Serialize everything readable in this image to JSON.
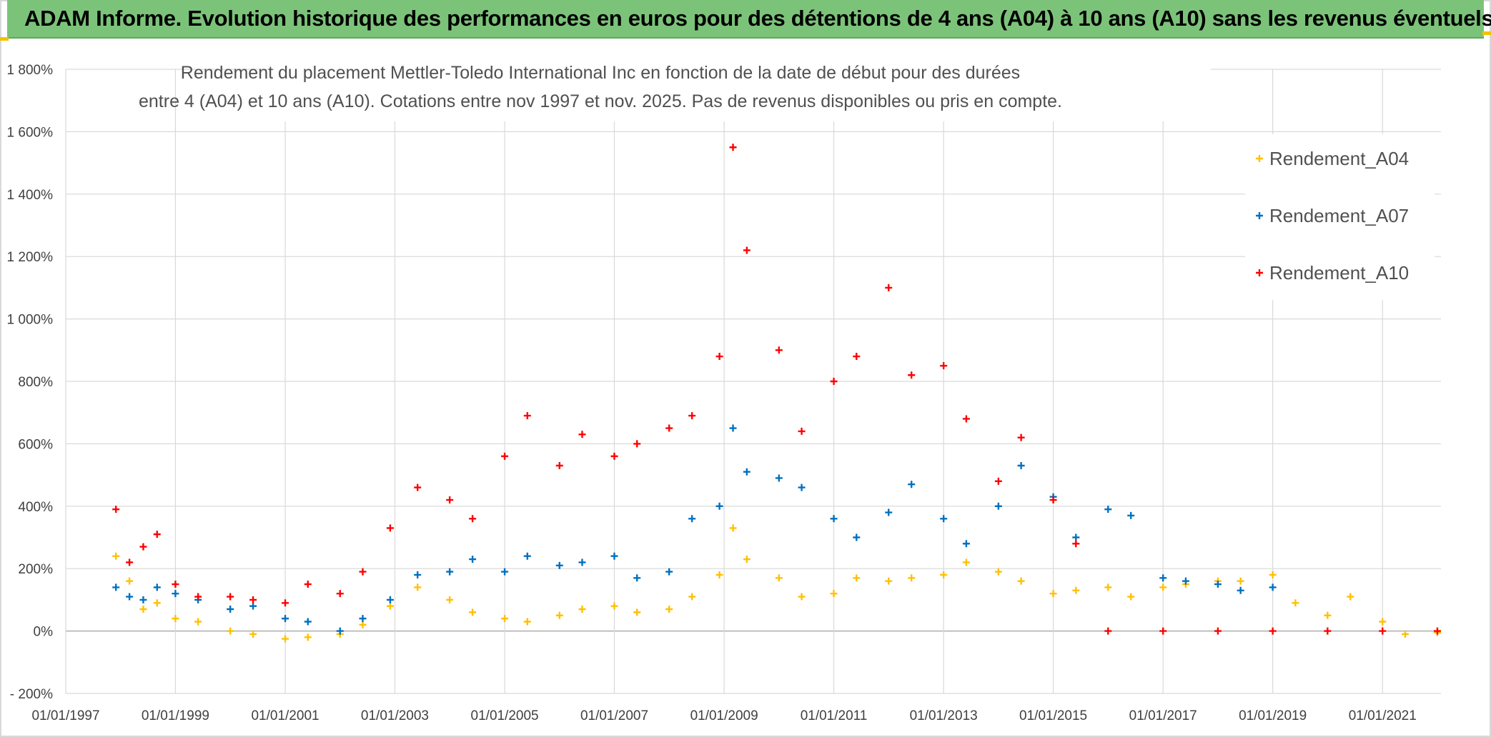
{
  "header": {
    "title": "ADAM Informe. Evolution historique des performances en euros pour des détentions de 4 ans (A04) à 10 ans (A10) sans les revenus éventuels"
  },
  "chart_data": {
    "type": "scatter",
    "title_line1": "Rendement du placement Mettler-Toledo International Inc en fonction de la date de début pour des durées",
    "title_line2": "entre 4 (A04) et 10 ans (A10). Cotations entre nov 1997 et nov. 2025. Pas de revenus disponibles ou pris en compte.",
    "xlabel": "",
    "ylabel": "",
    "x_range": [
      "1997-01-01",
      "2022-01-25"
    ],
    "x_ticks": [
      "01/01/1997",
      "01/01/1999",
      "01/01/2001",
      "01/01/2003",
      "01/01/2005",
      "01/01/2007",
      "01/01/2009",
      "01/01/2011",
      "01/01/2013",
      "01/01/2015",
      "01/01/2017",
      "01/01/2019",
      "01/01/2021"
    ],
    "y_range": [
      -200,
      1800
    ],
    "y_ticks": [
      "- 200%",
      "0%",
      "200%",
      "400%",
      "600%",
      "800%",
      "1 000%",
      "1 200%",
      "1 400%",
      "1 600%",
      "1 800%"
    ],
    "y_unit": "%",
    "grid": true,
    "legend_position": "right",
    "marker": "+",
    "series": [
      {
        "name": "Rendement_A04",
        "color": "#ffc000",
        "points": [
          [
            "1997-12-01",
            240
          ],
          [
            "1998-03-01",
            160
          ],
          [
            "1998-06-01",
            70
          ],
          [
            "1998-09-01",
            90
          ],
          [
            "1999-01-01",
            40
          ],
          [
            "1999-06-01",
            30
          ],
          [
            "2000-01-01",
            0
          ],
          [
            "2000-06-01",
            -10
          ],
          [
            "2001-01-01",
            -25
          ],
          [
            "2001-06-01",
            -20
          ],
          [
            "2002-01-01",
            -10
          ],
          [
            "2002-06-01",
            20
          ],
          [
            "2002-12-01",
            80
          ],
          [
            "2003-06-01",
            140
          ],
          [
            "2004-01-01",
            100
          ],
          [
            "2004-06-01",
            60
          ],
          [
            "2005-01-01",
            40
          ],
          [
            "2005-06-01",
            30
          ],
          [
            "2006-01-01",
            50
          ],
          [
            "2006-06-01",
            70
          ],
          [
            "2007-01-01",
            80
          ],
          [
            "2007-06-01",
            60
          ],
          [
            "2008-01-01",
            70
          ],
          [
            "2008-06-01",
            110
          ],
          [
            "2008-12-01",
            180
          ],
          [
            "2009-03-01",
            330
          ],
          [
            "2009-06-01",
            230
          ],
          [
            "2010-01-01",
            170
          ],
          [
            "2010-06-01",
            110
          ],
          [
            "2011-01-01",
            120
          ],
          [
            "2011-06-01",
            170
          ],
          [
            "2012-01-01",
            160
          ],
          [
            "2012-06-01",
            170
          ],
          [
            "2013-01-01",
            180
          ],
          [
            "2013-06-01",
            220
          ],
          [
            "2014-01-01",
            190
          ],
          [
            "2014-06-01",
            160
          ],
          [
            "2015-01-01",
            120
          ],
          [
            "2015-06-01",
            130
          ],
          [
            "2016-01-01",
            140
          ],
          [
            "2016-06-01",
            110
          ],
          [
            "2017-01-01",
            140
          ],
          [
            "2017-06-01",
            150
          ],
          [
            "2018-01-01",
            160
          ],
          [
            "2018-06-01",
            160
          ],
          [
            "2019-01-01",
            180
          ],
          [
            "2019-06-01",
            90
          ],
          [
            "2020-01-01",
            50
          ],
          [
            "2020-06-01",
            110
          ],
          [
            "2021-01-01",
            30
          ],
          [
            "2021-06-01",
            -10
          ],
          [
            "2022-01-01",
            -5
          ]
        ]
      },
      {
        "name": "Rendement_A07",
        "color": "#0070c0",
        "points": [
          [
            "1997-12-01",
            140
          ],
          [
            "1998-03-01",
            110
          ],
          [
            "1998-06-01",
            100
          ],
          [
            "1998-09-01",
            140
          ],
          [
            "1999-01-01",
            120
          ],
          [
            "1999-06-01",
            100
          ],
          [
            "2000-01-01",
            70
          ],
          [
            "2000-06-01",
            80
          ],
          [
            "2001-01-01",
            40
          ],
          [
            "2001-06-01",
            30
          ],
          [
            "2002-01-01",
            0
          ],
          [
            "2002-06-01",
            40
          ],
          [
            "2002-12-01",
            100
          ],
          [
            "2003-06-01",
            180
          ],
          [
            "2004-01-01",
            190
          ],
          [
            "2004-06-01",
            230
          ],
          [
            "2005-01-01",
            190
          ],
          [
            "2005-06-01",
            240
          ],
          [
            "2006-01-01",
            210
          ],
          [
            "2006-06-01",
            220
          ],
          [
            "2007-01-01",
            240
          ],
          [
            "2007-06-01",
            170
          ],
          [
            "2008-01-01",
            190
          ],
          [
            "2008-06-01",
            360
          ],
          [
            "2008-12-01",
            400
          ],
          [
            "2009-03-01",
            650
          ],
          [
            "2009-06-01",
            510
          ],
          [
            "2010-01-01",
            490
          ],
          [
            "2010-06-01",
            460
          ],
          [
            "2011-01-01",
            360
          ],
          [
            "2011-06-01",
            300
          ],
          [
            "2012-01-01",
            380
          ],
          [
            "2012-06-01",
            470
          ],
          [
            "2013-01-01",
            360
          ],
          [
            "2013-06-01",
            280
          ],
          [
            "2014-01-01",
            400
          ],
          [
            "2014-06-01",
            530
          ],
          [
            "2015-01-01",
            430
          ],
          [
            "2015-06-01",
            300
          ],
          [
            "2016-01-01",
            390
          ],
          [
            "2016-06-01",
            370
          ],
          [
            "2017-01-01",
            170
          ],
          [
            "2017-06-01",
            160
          ],
          [
            "2018-01-01",
            150
          ],
          [
            "2018-06-01",
            130
          ],
          [
            "2019-01-01",
            140
          ]
        ]
      },
      {
        "name": "Rendement_A10",
        "color": "#ff0000",
        "points": [
          [
            "1997-12-01",
            390
          ],
          [
            "1998-03-01",
            220
          ],
          [
            "1998-06-01",
            270
          ],
          [
            "1998-09-01",
            310
          ],
          [
            "1999-01-01",
            150
          ],
          [
            "1999-06-01",
            110
          ],
          [
            "2000-01-01",
            110
          ],
          [
            "2000-06-01",
            100
          ],
          [
            "2001-01-01",
            90
          ],
          [
            "2001-06-01",
            150
          ],
          [
            "2002-01-01",
            120
          ],
          [
            "2002-06-01",
            190
          ],
          [
            "2002-12-01",
            330
          ],
          [
            "2003-06-01",
            460
          ],
          [
            "2004-01-01",
            420
          ],
          [
            "2004-06-01",
            360
          ],
          [
            "2005-01-01",
            560
          ],
          [
            "2005-06-01",
            690
          ],
          [
            "2006-01-01",
            530
          ],
          [
            "2006-06-01",
            630
          ],
          [
            "2007-01-01",
            560
          ],
          [
            "2007-06-01",
            600
          ],
          [
            "2008-01-01",
            650
          ],
          [
            "2008-06-01",
            690
          ],
          [
            "2008-12-01",
            880
          ],
          [
            "2009-03-01",
            1550
          ],
          [
            "2009-06-01",
            1220
          ],
          [
            "2010-01-01",
            900
          ],
          [
            "2010-06-01",
            640
          ],
          [
            "2011-01-01",
            800
          ],
          [
            "2011-06-01",
            880
          ],
          [
            "2012-01-01",
            1100
          ],
          [
            "2012-06-01",
            820
          ],
          [
            "2013-01-01",
            850
          ],
          [
            "2013-06-01",
            680
          ],
          [
            "2014-01-01",
            480
          ],
          [
            "2014-06-01",
            620
          ],
          [
            "2015-01-01",
            420
          ],
          [
            "2015-06-01",
            280
          ],
          [
            "2016-01-01",
            0
          ],
          [
            "2017-01-01",
            0
          ],
          [
            "2018-01-01",
            0
          ],
          [
            "2019-01-01",
            0
          ],
          [
            "2020-01-01",
            0
          ],
          [
            "2021-01-01",
            0
          ],
          [
            "2022-01-01",
            0
          ]
        ]
      }
    ]
  }
}
